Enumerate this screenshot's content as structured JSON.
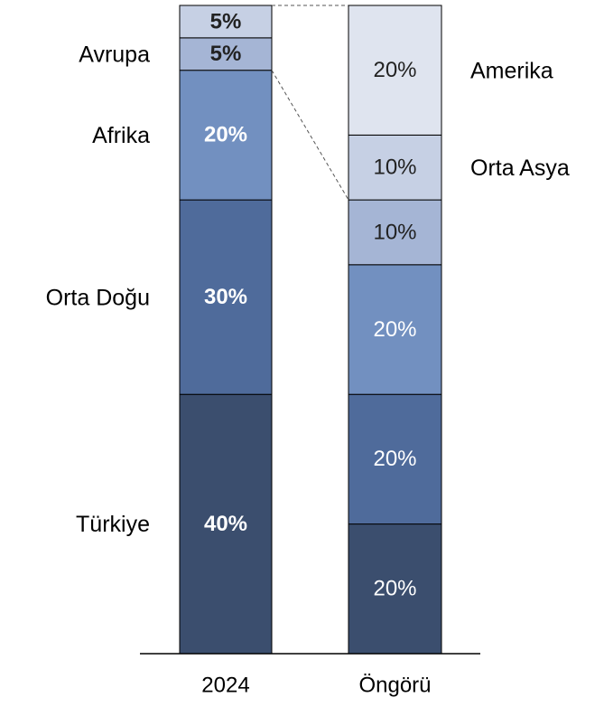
{
  "chart_data": {
    "type": "stacked_bar",
    "categories": [
      "2024",
      "Öngörü"
    ],
    "ylim": [
      0,
      100
    ],
    "series": [
      {
        "name": "Türkiye",
        "color": "#3b4e6e",
        "values": [
          40,
          20
        ],
        "value_labels": [
          "40%",
          "20%"
        ],
        "label_side": "left"
      },
      {
        "name": "Orta Doğu",
        "color": "#4f6b9b",
        "values": [
          30,
          20
        ],
        "value_labels": [
          "30%",
          "20%"
        ],
        "label_side": "left"
      },
      {
        "name": "Afrika",
        "color": "#7290c0",
        "values": [
          20,
          20
        ],
        "value_labels": [
          "20%",
          "20%"
        ],
        "label_side": "left"
      },
      {
        "name": "Avrupa",
        "color": "#a5b5d5",
        "values": [
          5,
          10
        ],
        "value_labels": [
          "5%",
          "10%"
        ],
        "label_side": "left"
      },
      {
        "name": "Orta Asya",
        "color": "#c6d0e4",
        "values": [
          5,
          10
        ],
        "value_labels": [
          "5%",
          "10%"
        ],
        "label_side": "right"
      },
      {
        "name": "Amerika",
        "color": "#dfe4ef",
        "values": [
          null,
          20
        ],
        "value_labels": [
          null,
          "20%"
        ],
        "label_side": "right"
      }
    ]
  }
}
